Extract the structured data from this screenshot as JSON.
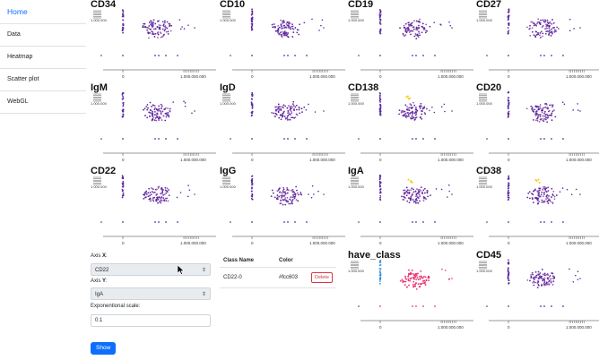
{
  "sidebar": {
    "items": [
      {
        "label": "Home",
        "active": true
      },
      {
        "label": "Data",
        "active": false
      },
      {
        "label": "Heatmap",
        "active": false
      },
      {
        "label": "Scatter plot",
        "active": false
      },
      {
        "label": "WebGL",
        "active": false
      }
    ]
  },
  "plots": [
    {
      "title": "CD34",
      "palette": "purple"
    },
    {
      "title": "CD10",
      "palette": "purple"
    },
    {
      "title": "CD19",
      "palette": "purple"
    },
    {
      "title": "CD27",
      "palette": "purple"
    },
    {
      "title": "IgM",
      "palette": "purple"
    },
    {
      "title": "IgD",
      "palette": "purple"
    },
    {
      "title": "CD138",
      "palette": "purple"
    },
    {
      "title": "CD20",
      "palette": "purple"
    },
    {
      "title": "CD22",
      "palette": "purple"
    },
    {
      "title": "IgG",
      "palette": "purple"
    },
    {
      "title": "IgA",
      "palette": "purple"
    },
    {
      "title": "CD38",
      "palette": "purple"
    },
    {
      "title": "have_class",
      "palette": "class"
    },
    {
      "title": "CD45",
      "palette": "purple"
    }
  ],
  "axis_ticks": {
    "x0": "0",
    "x_max": "1.000.000.000",
    "y_label": "1.000.000"
  },
  "controls": {
    "axis_x_label_prefix": "Axis ",
    "axis_x_letter": "X",
    "axis_x_value": "CD22",
    "axis_y_label_prefix": "Axis ",
    "axis_y_letter": "Y",
    "axis_y_value": "IgA",
    "exp_scale_label": "Exponentional scale:",
    "exp_scale_value": "0.1",
    "show_button": "Show"
  },
  "class_table": {
    "headers": [
      "Class Name",
      "Color"
    ],
    "rows": [
      {
        "name": "CD22-0",
        "color": "#fcc603",
        "action": "Delete"
      }
    ]
  },
  "colors": {
    "accent": "#0d6efd",
    "point_purple": "#5b2a9e",
    "point_light": "#9b59b6",
    "highlight": "#fcc603",
    "class_pink": "#e8336d",
    "class_blue": "#3b8fd9"
  }
}
